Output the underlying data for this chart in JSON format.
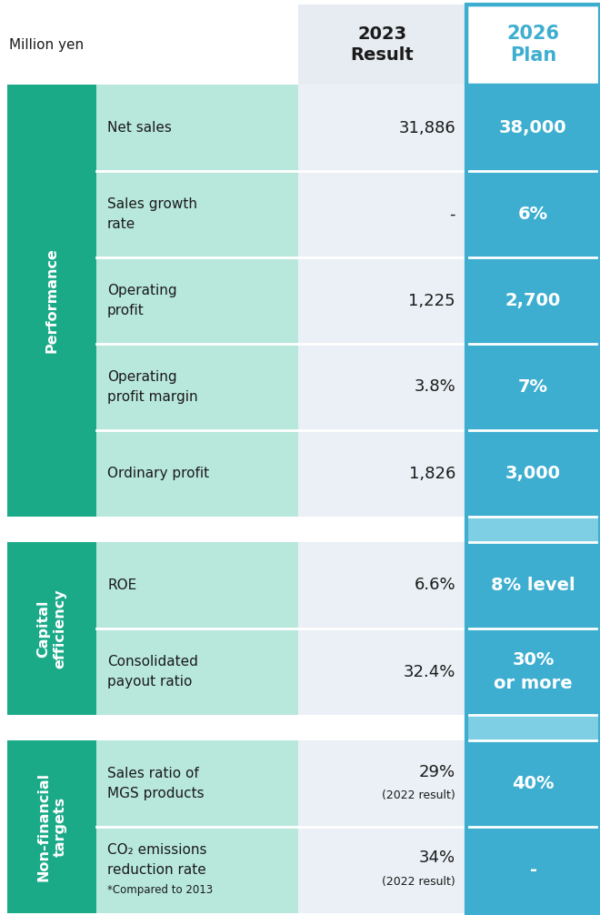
{
  "title_left": "Million yen",
  "header_2023": "2023\nResult",
  "header_2026": "2026\nPlan",
  "header_2026_color": "#3DAED0",
  "header_border_color": "#3DAED0",
  "groups": [
    {
      "label": "Performance",
      "label_color": "#FFFFFF",
      "bg_color": "#1BAA88",
      "rows": [
        {
          "metric": "Net sales",
          "result": "31,886",
          "plan": "38,000",
          "metric_bg": "#B8E8DC",
          "result_bg": "#EAF0F5",
          "plan_bg": "#3DAED0"
        },
        {
          "metric": "Sales growth\nrate",
          "result": "-",
          "plan": "6%",
          "metric_bg": "#B8E8DC",
          "result_bg": "#EAF0F5",
          "plan_bg": "#3DAED0"
        },
        {
          "metric": "Operating\nprofit",
          "result": "1,225",
          "plan": "2,700",
          "metric_bg": "#B8E8DC",
          "result_bg": "#EAF0F5",
          "plan_bg": "#3DAED0"
        },
        {
          "metric": "Operating\nprofit margin",
          "result": "3.8%",
          "plan": "7%",
          "metric_bg": "#B8E8DC",
          "result_bg": "#EAF0F5",
          "plan_bg": "#3DAED0"
        },
        {
          "metric": "Ordinary profit",
          "result": "1,826",
          "plan": "3,000",
          "metric_bg": "#B8E8DC",
          "result_bg": "#EAF0F5",
          "plan_bg": "#3DAED0"
        }
      ]
    },
    {
      "label": "Capital\nefficiency",
      "label_color": "#FFFFFF",
      "bg_color": "#1BAA88",
      "rows": [
        {
          "metric": "ROE",
          "result": "6.6%",
          "plan": "8% level",
          "metric_bg": "#B8E8DC",
          "result_bg": "#EAF0F5",
          "plan_bg": "#3DAED0"
        },
        {
          "metric": "Consolidated\npayout ratio",
          "result": "32.4%",
          "plan": "30%\nor more",
          "metric_bg": "#B8E8DC",
          "result_bg": "#EAF0F5",
          "plan_bg": "#3DAED0"
        }
      ]
    },
    {
      "label": "Non-financial\ntargets",
      "label_color": "#FFFFFF",
      "bg_color": "#1BAA88",
      "rows": [
        {
          "metric": "Sales ratio of\nMGS products",
          "result": "29%\n(2022 result)",
          "plan": "40%",
          "metric_bg": "#B8E8DC",
          "result_bg": "#EAF0F5",
          "plan_bg": "#3DAED0"
        },
        {
          "metric": "CO₂ emissions\nreduction rate\n*Compared to 2013",
          "result": "34%\n(2022 result)",
          "plan": "-",
          "metric_bg": "#B8E8DC",
          "result_bg": "#EAF0F5",
          "plan_bg": "#3DAED0"
        }
      ]
    }
  ],
  "plan_gap_bg": "#7ECFE4",
  "bg_white": "#FFFFFF",
  "text_dark": "#1A1A1A",
  "text_white": "#FFFFFF",
  "text_cyan": "#3DAED0"
}
